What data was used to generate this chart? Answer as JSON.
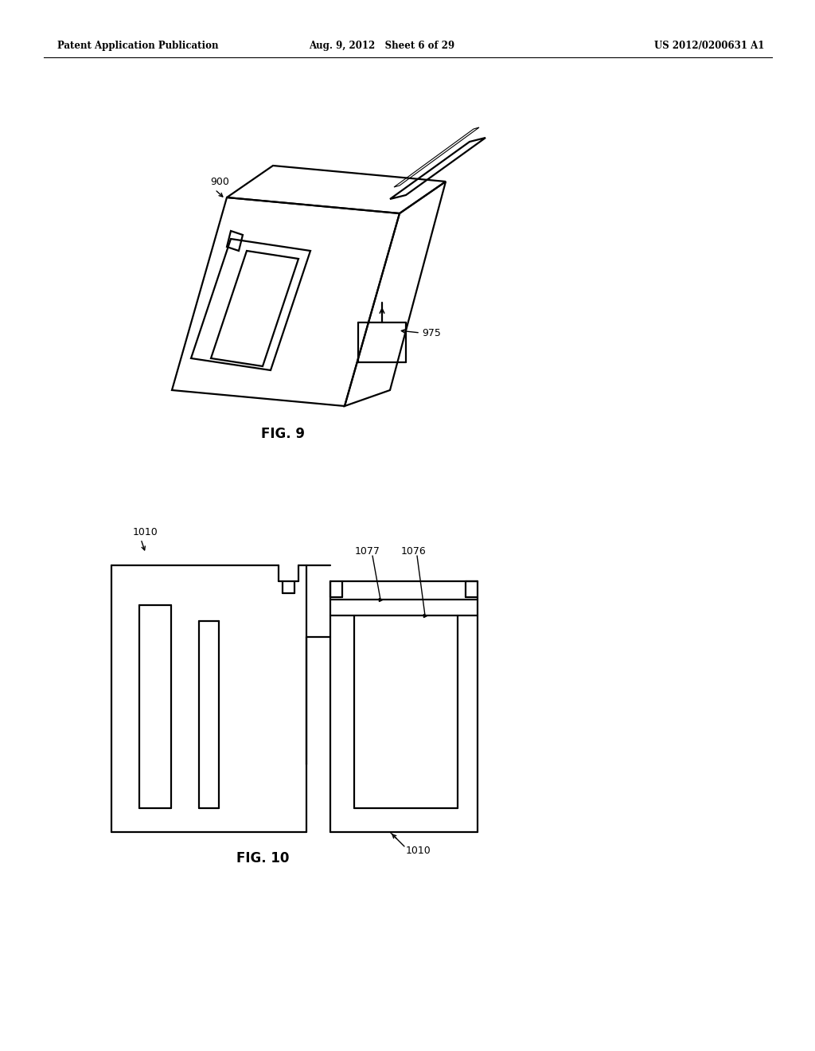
{
  "bg_color": "#ffffff",
  "header_left": "Patent Application Publication",
  "header_mid": "Aug. 9, 2012   Sheet 6 of 29",
  "header_right": "US 2012/0200631 A1",
  "fig9_label": "FIG. 9",
  "fig10_label": "FIG. 10",
  "label_900": "900",
  "label_975": "975",
  "label_1010a": "1010",
  "label_1010b": "1010",
  "label_1077": "1077",
  "label_1076": "1076",
  "lw": 1.6
}
